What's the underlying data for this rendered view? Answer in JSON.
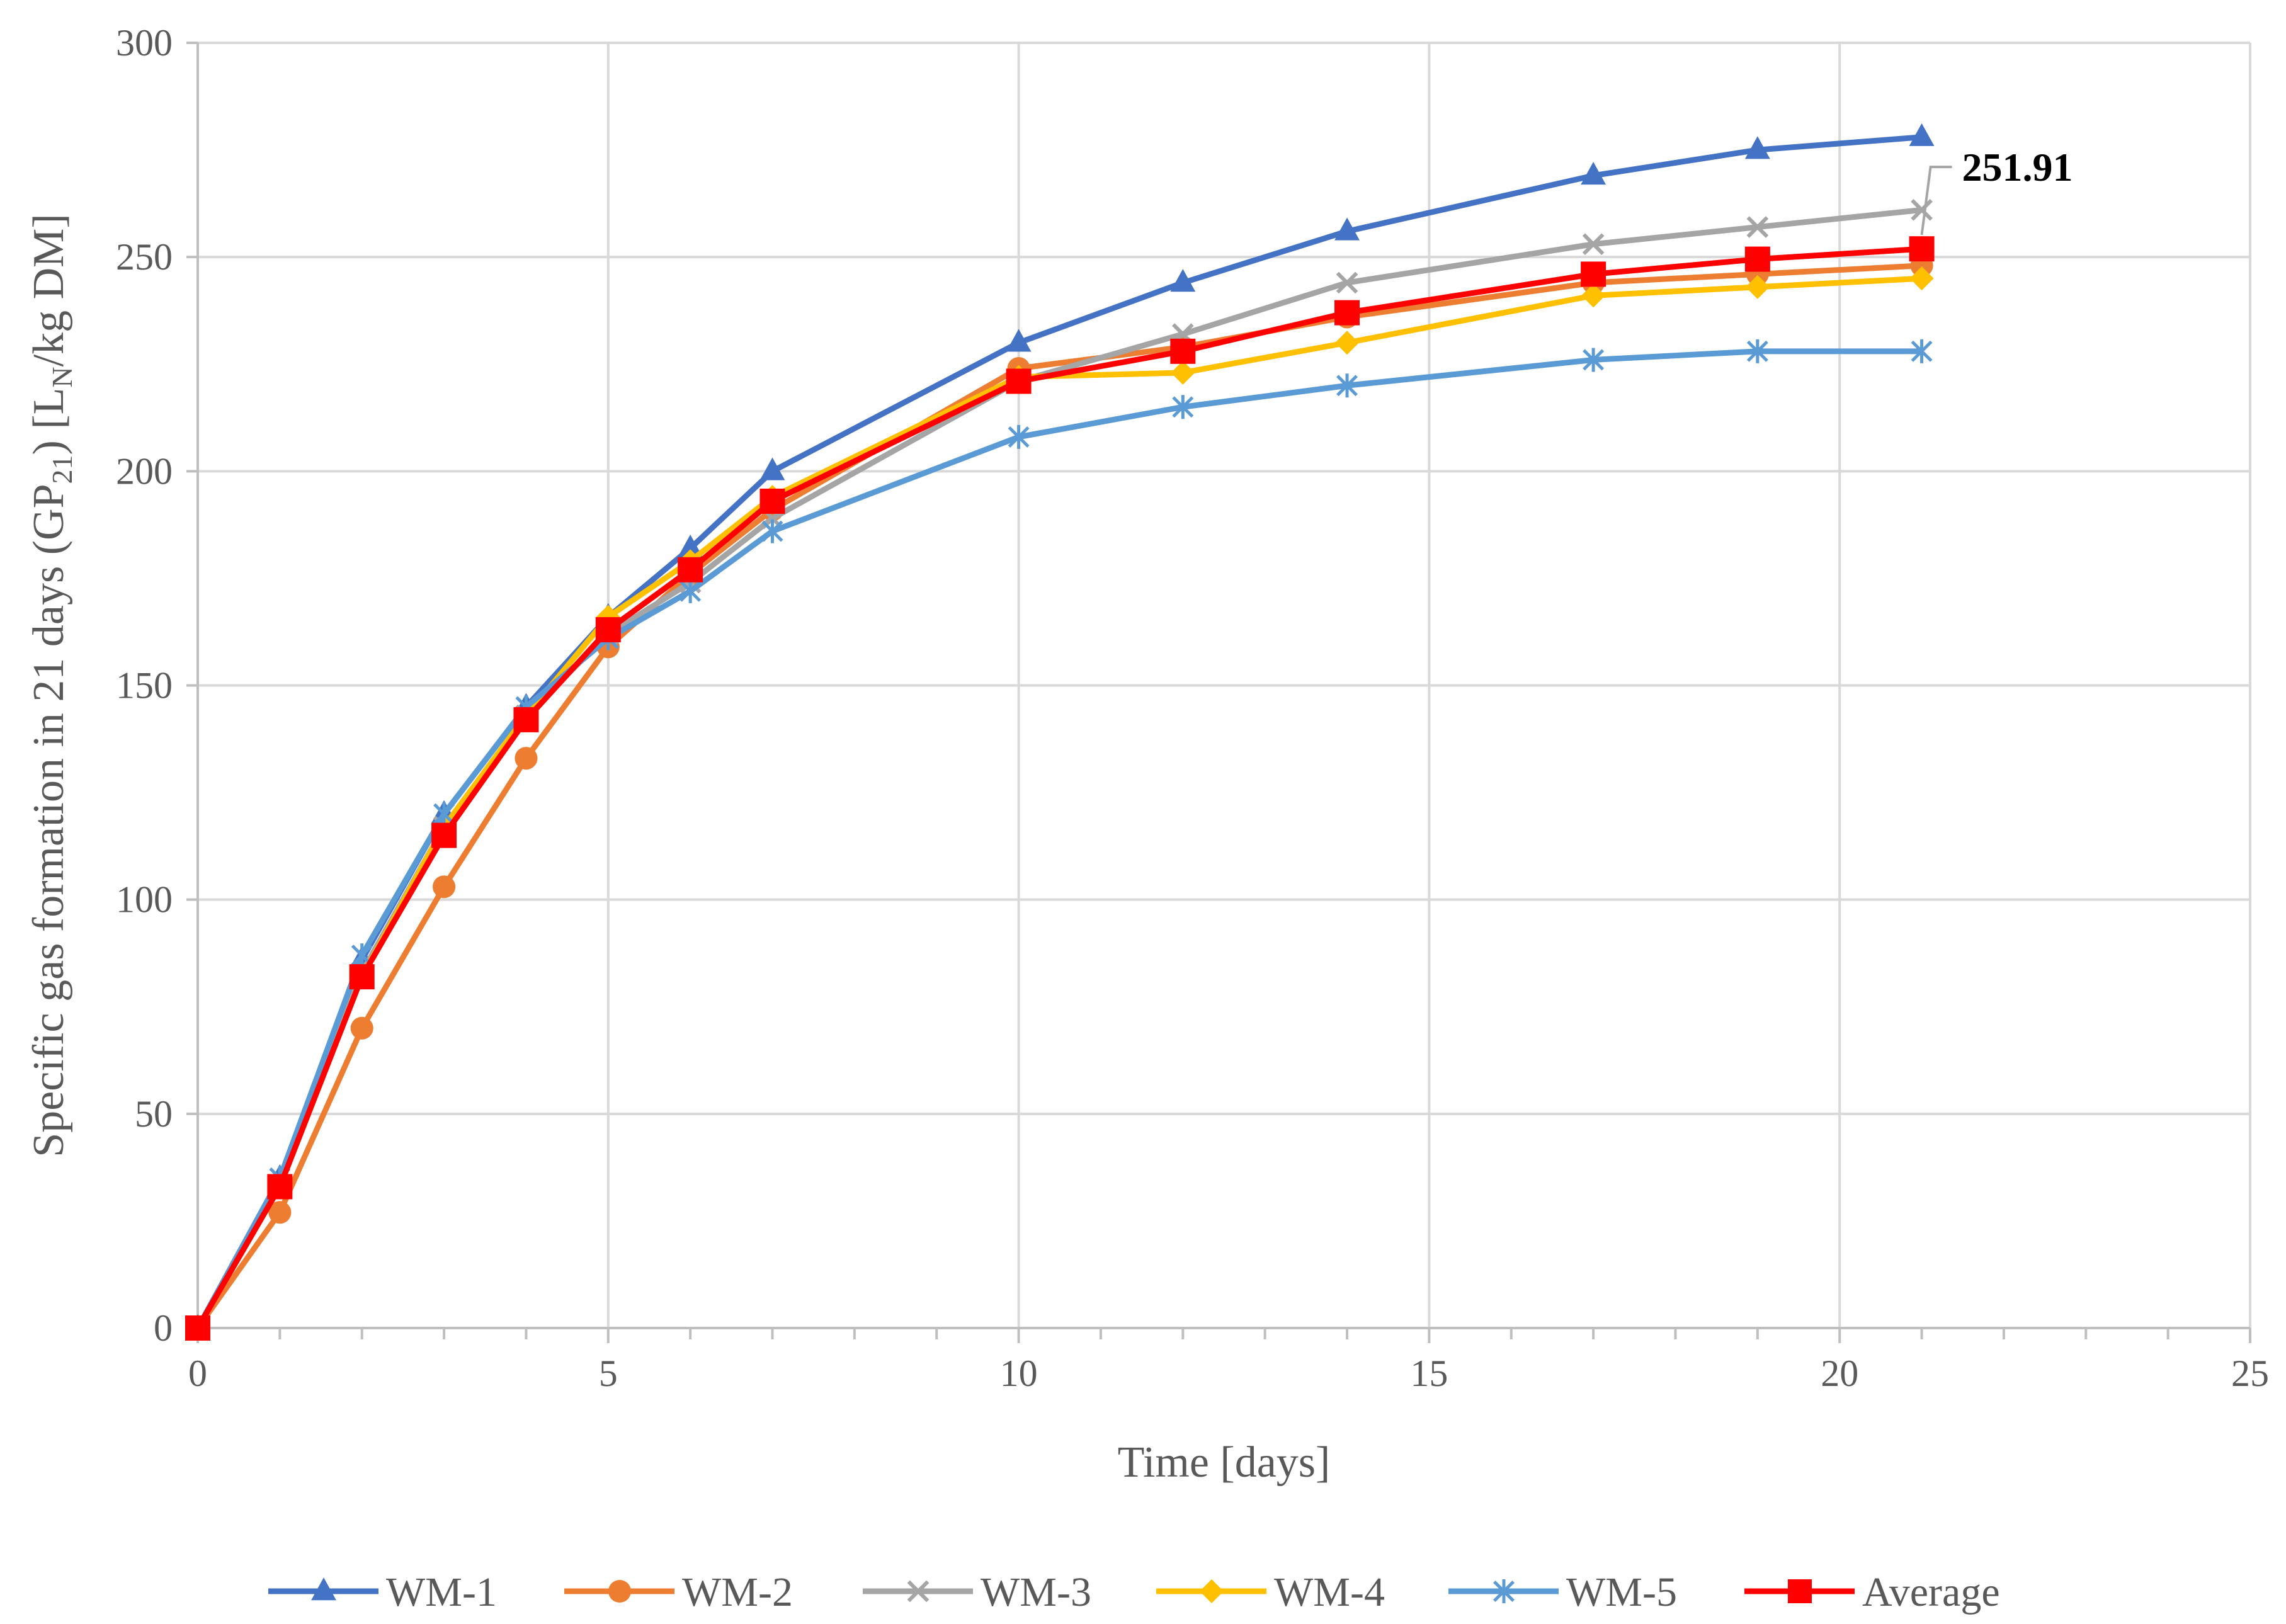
{
  "chart_data": {
    "type": "line",
    "title": "",
    "xlabel": "Time [days]",
    "ylabel": {
      "pre": "Specific gas formation in 21 days (GP",
      "sub1": "21",
      "mid": ") [L",
      "sub2": "N",
      "post": "/kg DM]"
    },
    "xlim": [
      0,
      25
    ],
    "ylim": [
      0,
      300
    ],
    "x_major_step": 5,
    "x_minor_step": 1,
    "y_major_step": 50,
    "grid": true,
    "x_ticks": [
      "0",
      "5",
      "10",
      "15",
      "20",
      "25"
    ],
    "y_ticks": [
      "0",
      "50",
      "100",
      "150",
      "200",
      "250",
      "300"
    ],
    "x": [
      0,
      1,
      2,
      3,
      4,
      5,
      6,
      7,
      10,
      12,
      14,
      17,
      19,
      21
    ],
    "series": [
      {
        "name": "WM-1",
        "color": "#4472C4",
        "marker": "triangle",
        "values": [
          0,
          35,
          86,
          120,
          145,
          166,
          182,
          200,
          230,
          244,
          256,
          269,
          275,
          278
        ]
      },
      {
        "name": "WM-2",
        "color": "#ED7D31",
        "marker": "circle",
        "values": [
          0,
          27,
          70,
          103,
          133,
          159,
          176,
          191,
          224,
          229,
          236,
          244,
          246,
          248
        ]
      },
      {
        "name": "WM-3",
        "color": "#A5A5A5",
        "marker": "x",
        "values": [
          0,
          33,
          83,
          117,
          143,
          162,
          174,
          189,
          221,
          232,
          244,
          253,
          257,
          261
        ]
      },
      {
        "name": "WM-4",
        "color": "#FFC000",
        "marker": "diamond",
        "values": [
          0,
          33,
          82,
          117,
          143,
          166,
          179,
          194,
          222,
          223,
          230,
          241,
          243,
          245
        ]
      },
      {
        "name": "WM-5",
        "color": "#5B9BD5",
        "marker": "asterisk",
        "values": [
          0,
          35,
          87,
          120,
          145,
          161,
          172,
          186,
          208,
          215,
          220,
          226,
          228,
          228
        ]
      },
      {
        "name": "Average",
        "color": "#FF0000",
        "marker": "square",
        "values": [
          0,
          33,
          82,
          115,
          142,
          163,
          177,
          193,
          221,
          228,
          237,
          246,
          249.5,
          251.91
        ]
      }
    ],
    "annotation": {
      "text": "251.91",
      "series": "Average",
      "x": 21,
      "y": 251.91
    },
    "legend_position": "bottom"
  }
}
